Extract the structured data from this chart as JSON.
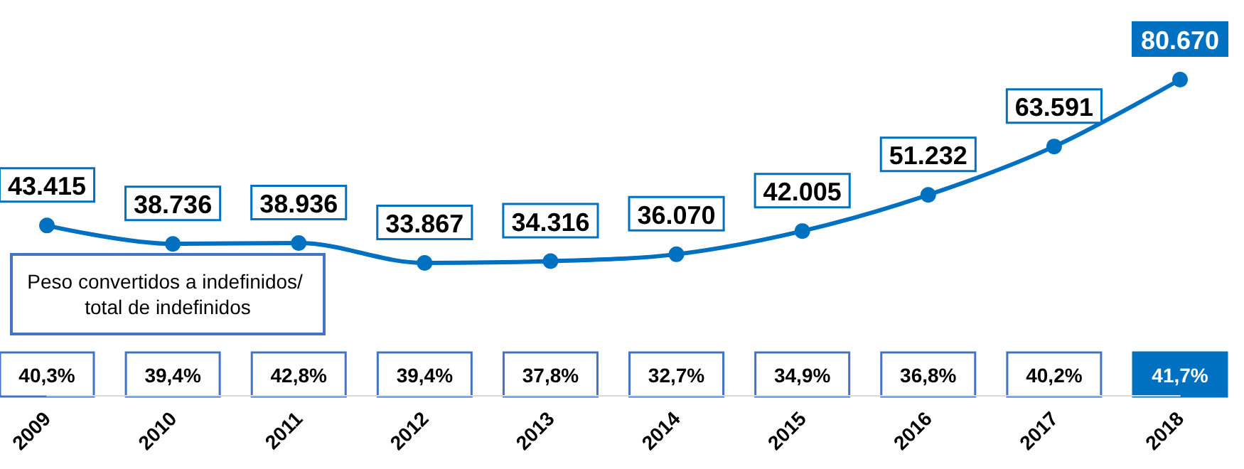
{
  "chart_data": {
    "type": "line",
    "categories": [
      "2009",
      "2010",
      "2011",
      "2012",
      "2013",
      "2014",
      "2015",
      "2016",
      "2017",
      "2018"
    ],
    "series": [
      {
        "color": "#0070c0",
        "values": [
          43415,
          38736,
          38936,
          33867,
          34316,
          36070,
          42005,
          51232,
          63591,
          80670
        ],
        "value_labels": [
          "43.415",
          "38.736",
          "38.936",
          "33.867",
          "34.316",
          "36.070",
          "42.005",
          "51.232",
          "63.591",
          "80.670"
        ]
      }
    ],
    "annotations": [
      "Peso convertidos a indefinidos/ total de indefinidos",
      "40,3%",
      "39,4%",
      "42,8%",
      "39,4%",
      "37,8%",
      "32,7%",
      "34,9%",
      "36,8%",
      "40,2%",
      "41,7%"
    ],
    "marker": "circle",
    "line_style": "solid"
  }
}
